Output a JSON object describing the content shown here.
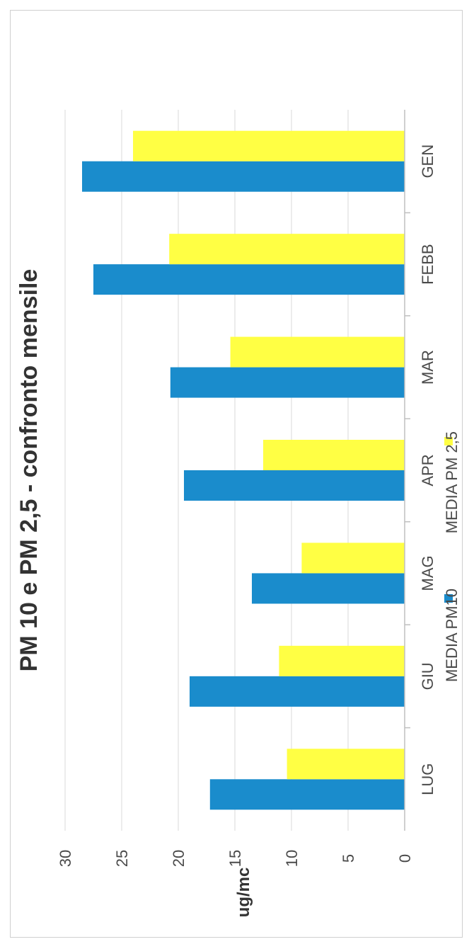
{
  "chart_data": {
    "type": "bar",
    "orientation": "rotated-90",
    "title": "PM 10 e PM 2,5 - confronto mensile",
    "ylabel": "ug/mc",
    "xlabel": "",
    "categories": [
      "GEN",
      "FEBB",
      "MAR",
      "APR",
      "MAG",
      "GIU",
      "LUG"
    ],
    "series": [
      {
        "name": "MEDIA PM10",
        "values": [
          28.5,
          27.5,
          20.7,
          19.5,
          13.5,
          19.0,
          17.2
        ],
        "color": "#1a8ccc"
      },
      {
        "name": "MEDIA PM 2,5",
        "values": [
          24.0,
          20.8,
          15.4,
          12.5,
          9.1,
          11.1,
          10.4
        ],
        "color": "#ffff44"
      }
    ],
    "ylim": [
      0,
      30
    ],
    "yticks": [
      "0",
      "5",
      "10",
      "15",
      "20",
      "25",
      "30"
    ],
    "grid": true,
    "legend": "bottom"
  }
}
